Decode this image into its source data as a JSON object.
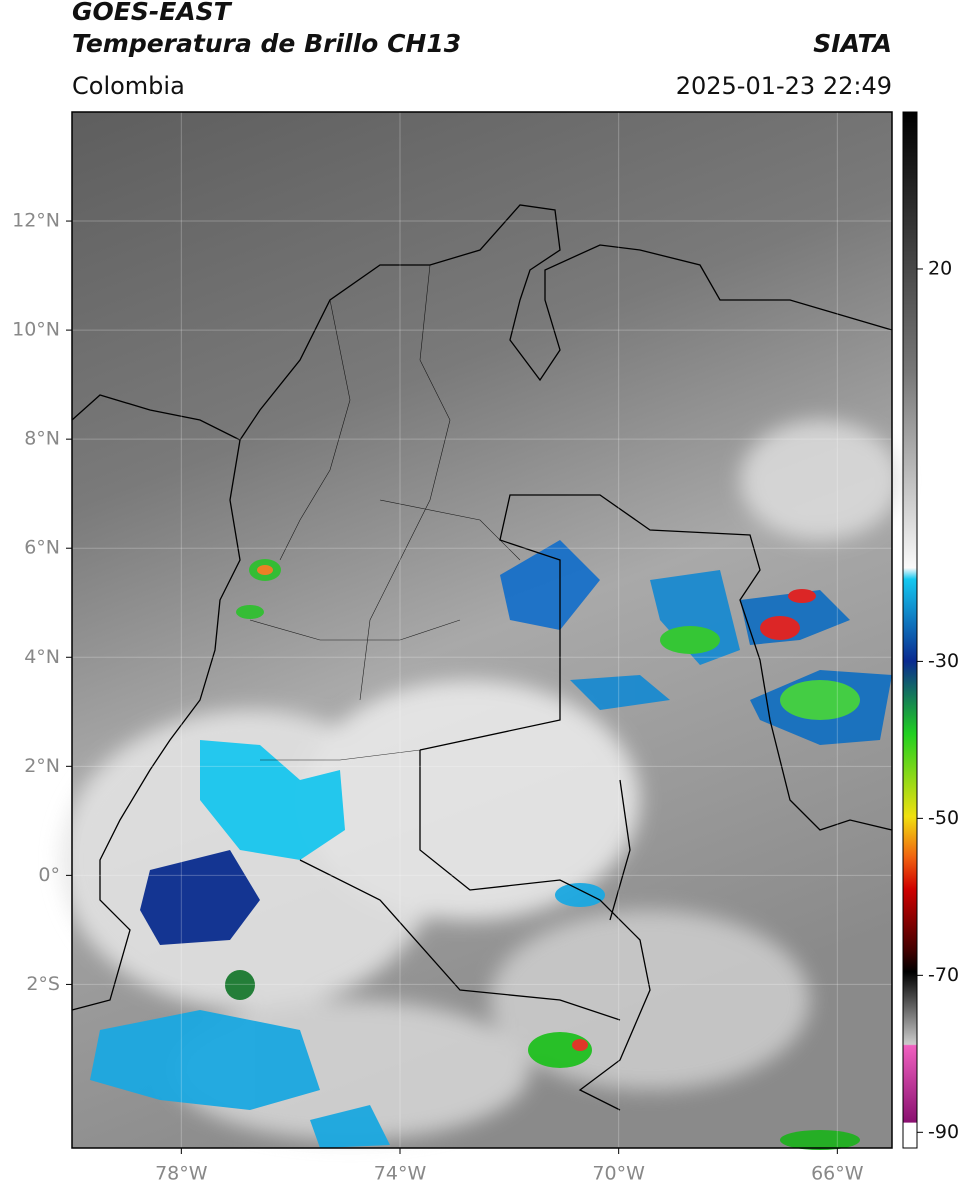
{
  "header": {
    "title": "GOES-EAST",
    "subtitle": "Temperatura de Brillo CH13",
    "source": "SIATA",
    "region": "Colombia",
    "timestamp": "2025-01-23 22:49"
  },
  "map": {
    "xlim": [
      -80,
      -65
    ],
    "ylim": [
      -5,
      14
    ],
    "xticks": [
      {
        "value": -78,
        "label": "78°W"
      },
      {
        "value": -74,
        "label": "74°W"
      },
      {
        "value": -70,
        "label": "70°W"
      },
      {
        "value": -66,
        "label": "66°W"
      }
    ],
    "yticks": [
      {
        "value": 12,
        "label": "12°N"
      },
      {
        "value": 10,
        "label": "10°N"
      },
      {
        "value": 8,
        "label": "8°N"
      },
      {
        "value": 6,
        "label": "6°N"
      },
      {
        "value": 4,
        "label": "4°N"
      },
      {
        "value": 2,
        "label": "2°N"
      },
      {
        "value": 0,
        "label": "0°"
      },
      {
        "value": -2,
        "label": "2°S"
      }
    ]
  },
  "colorbar": {
    "lim": [
      -92,
      40
    ],
    "ticks": [
      20,
      -30,
      -50,
      -70,
      -90
    ]
  }
}
